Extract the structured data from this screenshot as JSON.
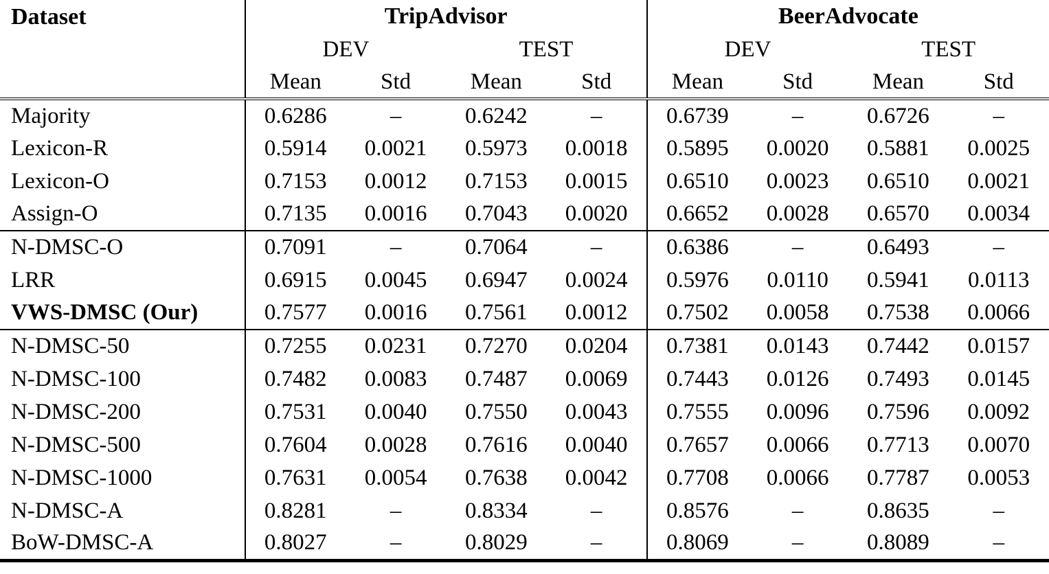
{
  "table": {
    "header": {
      "dataset_label": "Dataset",
      "group_labels": [
        "TripAdvisor",
        "BeerAdvocate"
      ],
      "split_labels": [
        "DEV",
        "TEST",
        "DEV",
        "TEST"
      ],
      "stat_labels": [
        "Mean",
        "Std",
        "Mean",
        "Std",
        "Mean",
        "Std",
        "Mean",
        "Std"
      ]
    },
    "groups": [
      {
        "rows": [
          {
            "label": "Majority",
            "emphasis": false,
            "values": [
              "0.6286",
              "–",
              "0.6242",
              "–",
              "0.6739",
              "–",
              "0.6726",
              "–"
            ]
          },
          {
            "label": "Lexicon-R",
            "emphasis": false,
            "values": [
              "0.5914",
              "0.0021",
              "0.5973",
              "0.0018",
              "0.5895",
              "0.0020",
              "0.5881",
              "0.0025"
            ]
          },
          {
            "label": "Lexicon-O",
            "emphasis": false,
            "values": [
              "0.7153",
              "0.0012",
              "0.7153",
              "0.0015",
              "0.6510",
              "0.0023",
              "0.6510",
              "0.0021"
            ]
          },
          {
            "label": "Assign-O",
            "emphasis": false,
            "values": [
              "0.7135",
              "0.0016",
              "0.7043",
              "0.0020",
              "0.6652",
              "0.0028",
              "0.6570",
              "0.0034"
            ]
          }
        ]
      },
      {
        "rows": [
          {
            "label": "N-DMSC-O",
            "emphasis": false,
            "values": [
              "0.7091",
              "–",
              "0.7064",
              "–",
              "0.6386",
              "–",
              "0.6493",
              "–"
            ]
          },
          {
            "label": "LRR",
            "emphasis": false,
            "values": [
              "0.6915",
              "0.0045",
              "0.6947",
              "0.0024",
              "0.5976",
              "0.0110",
              "0.5941",
              "0.0113"
            ]
          },
          {
            "label": "VWS-DMSC (Our)",
            "emphasis": true,
            "values": [
              "0.7577",
              "0.0016",
              "0.7561",
              "0.0012",
              "0.7502",
              "0.0058",
              "0.7538",
              "0.0066"
            ]
          }
        ]
      },
      {
        "rows": [
          {
            "label": "N-DMSC-50",
            "emphasis": false,
            "values": [
              "0.7255",
              "0.0231",
              "0.7270",
              "0.0204",
              "0.7381",
              "0.0143",
              "0.7442",
              "0.0157"
            ]
          },
          {
            "label": "N-DMSC-100",
            "emphasis": false,
            "values": [
              "0.7482",
              "0.0083",
              "0.7487",
              "0.0069",
              "0.7443",
              "0.0126",
              "0.7493",
              "0.0145"
            ]
          },
          {
            "label": "N-DMSC-200",
            "emphasis": false,
            "values": [
              "0.7531",
              "0.0040",
              "0.7550",
              "0.0043",
              "0.7555",
              "0.0096",
              "0.7596",
              "0.0092"
            ]
          },
          {
            "label": "N-DMSC-500",
            "emphasis": false,
            "values": [
              "0.7604",
              "0.0028",
              "0.7616",
              "0.0040",
              "0.7657",
              "0.0066",
              "0.7713",
              "0.0070"
            ]
          },
          {
            "label": "N-DMSC-1000",
            "emphasis": false,
            "values": [
              "0.7631",
              "0.0054",
              "0.7638",
              "0.0042",
              "0.7708",
              "0.0066",
              "0.7787",
              "0.0053"
            ]
          },
          {
            "label": "N-DMSC-A",
            "emphasis": false,
            "values": [
              "0.8281",
              "–",
              "0.8334",
              "–",
              "0.8576",
              "–",
              "0.8635",
              "–"
            ]
          },
          {
            "label": "BoW-DMSC-A",
            "emphasis": false,
            "values": [
              "0.8027",
              "–",
              "0.8029",
              "–",
              "0.8069",
              "–",
              "0.8089",
              "–"
            ]
          }
        ]
      }
    ]
  }
}
